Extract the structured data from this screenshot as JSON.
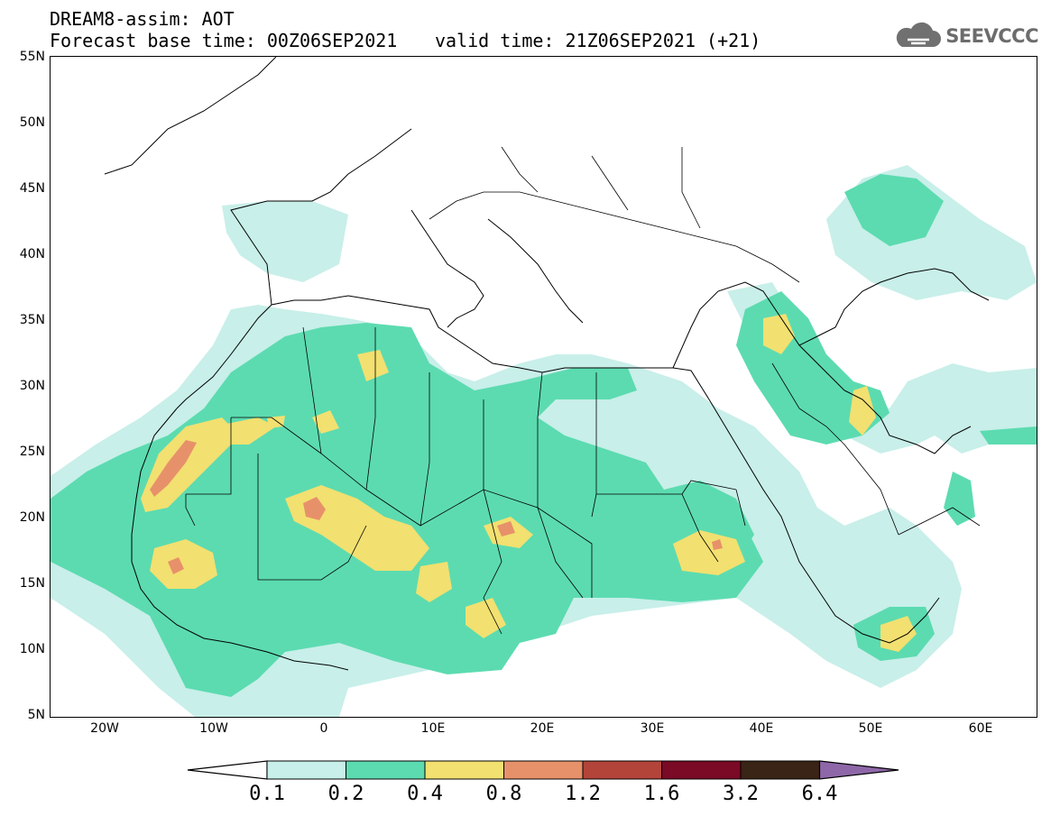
{
  "header": {
    "title_line1": "DREAM8-assim: AOT",
    "title_line2_left": "Forecast base time: 00Z06SEP2021",
    "title_line2_right": "valid time: 21Z06SEP2021 (+21)"
  },
  "logo": {
    "icon": "cloud-icon",
    "text": "SEEVCCC"
  },
  "axes": {
    "lat_labels": [
      "55N",
      "50N",
      "45N",
      "40N",
      "35N",
      "30N",
      "25N",
      "20N",
      "15N",
      "10N",
      "5N"
    ],
    "lon_labels": [
      "20W",
      "10W",
      "0",
      "10E",
      "20E",
      "30E",
      "40E",
      "50E",
      "60E"
    ],
    "lat_range": [
      5,
      55
    ],
    "lon_range": [
      -25,
      65
    ]
  },
  "colorbar": {
    "labels": [
      "0.1",
      "0.2",
      "0.4",
      "0.8",
      "1.2",
      "1.6",
      "3.2",
      "6.4"
    ],
    "colors": [
      "#c8efe9",
      "#5cdbb0",
      "#f2e070",
      "#e7916a",
      "#b3443a",
      "#7a0a25",
      "#3a2415",
      "#8e67a8"
    ]
  },
  "colors": {
    "aot_0_1": "#c8efe9",
    "aot_0_2": "#5cdbb0",
    "aot_0_4": "#f2e070",
    "aot_0_8": "#e7916a"
  }
}
